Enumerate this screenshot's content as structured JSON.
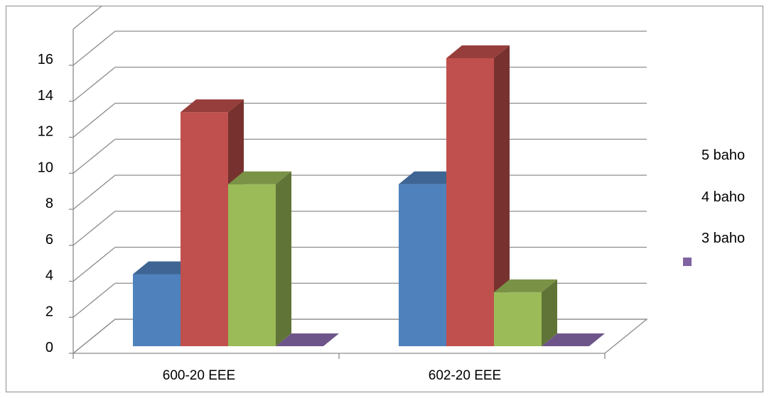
{
  "chart_data": {
    "type": "bar",
    "style": "3d-clustered-column",
    "categories": [
      "600-20 EEE",
      "602-20 EEE"
    ],
    "series": [
      {
        "name": "5 baho",
        "color": "#4F81BD",
        "values": [
          4,
          9
        ]
      },
      {
        "name": "4 baho",
        "color": "#C0504D",
        "values": [
          13,
          16
        ]
      },
      {
        "name": "3 baho",
        "color": "#9BBB59",
        "values": [
          9,
          3
        ]
      },
      {
        "name": "",
        "color": "#8064A2",
        "values": [
          0,
          0
        ]
      }
    ],
    "legend": {
      "labels": [
        "5 baho",
        "4 baho",
        "3 baho",
        ""
      ],
      "placement": "right"
    },
    "ylim": [
      0,
      16
    ],
    "yticks": [
      "0",
      "2",
      "4",
      "6",
      "8",
      "10",
      "12",
      "14",
      "16"
    ],
    "grid": true,
    "title": "",
    "xlabel": "",
    "ylabel": ""
  }
}
